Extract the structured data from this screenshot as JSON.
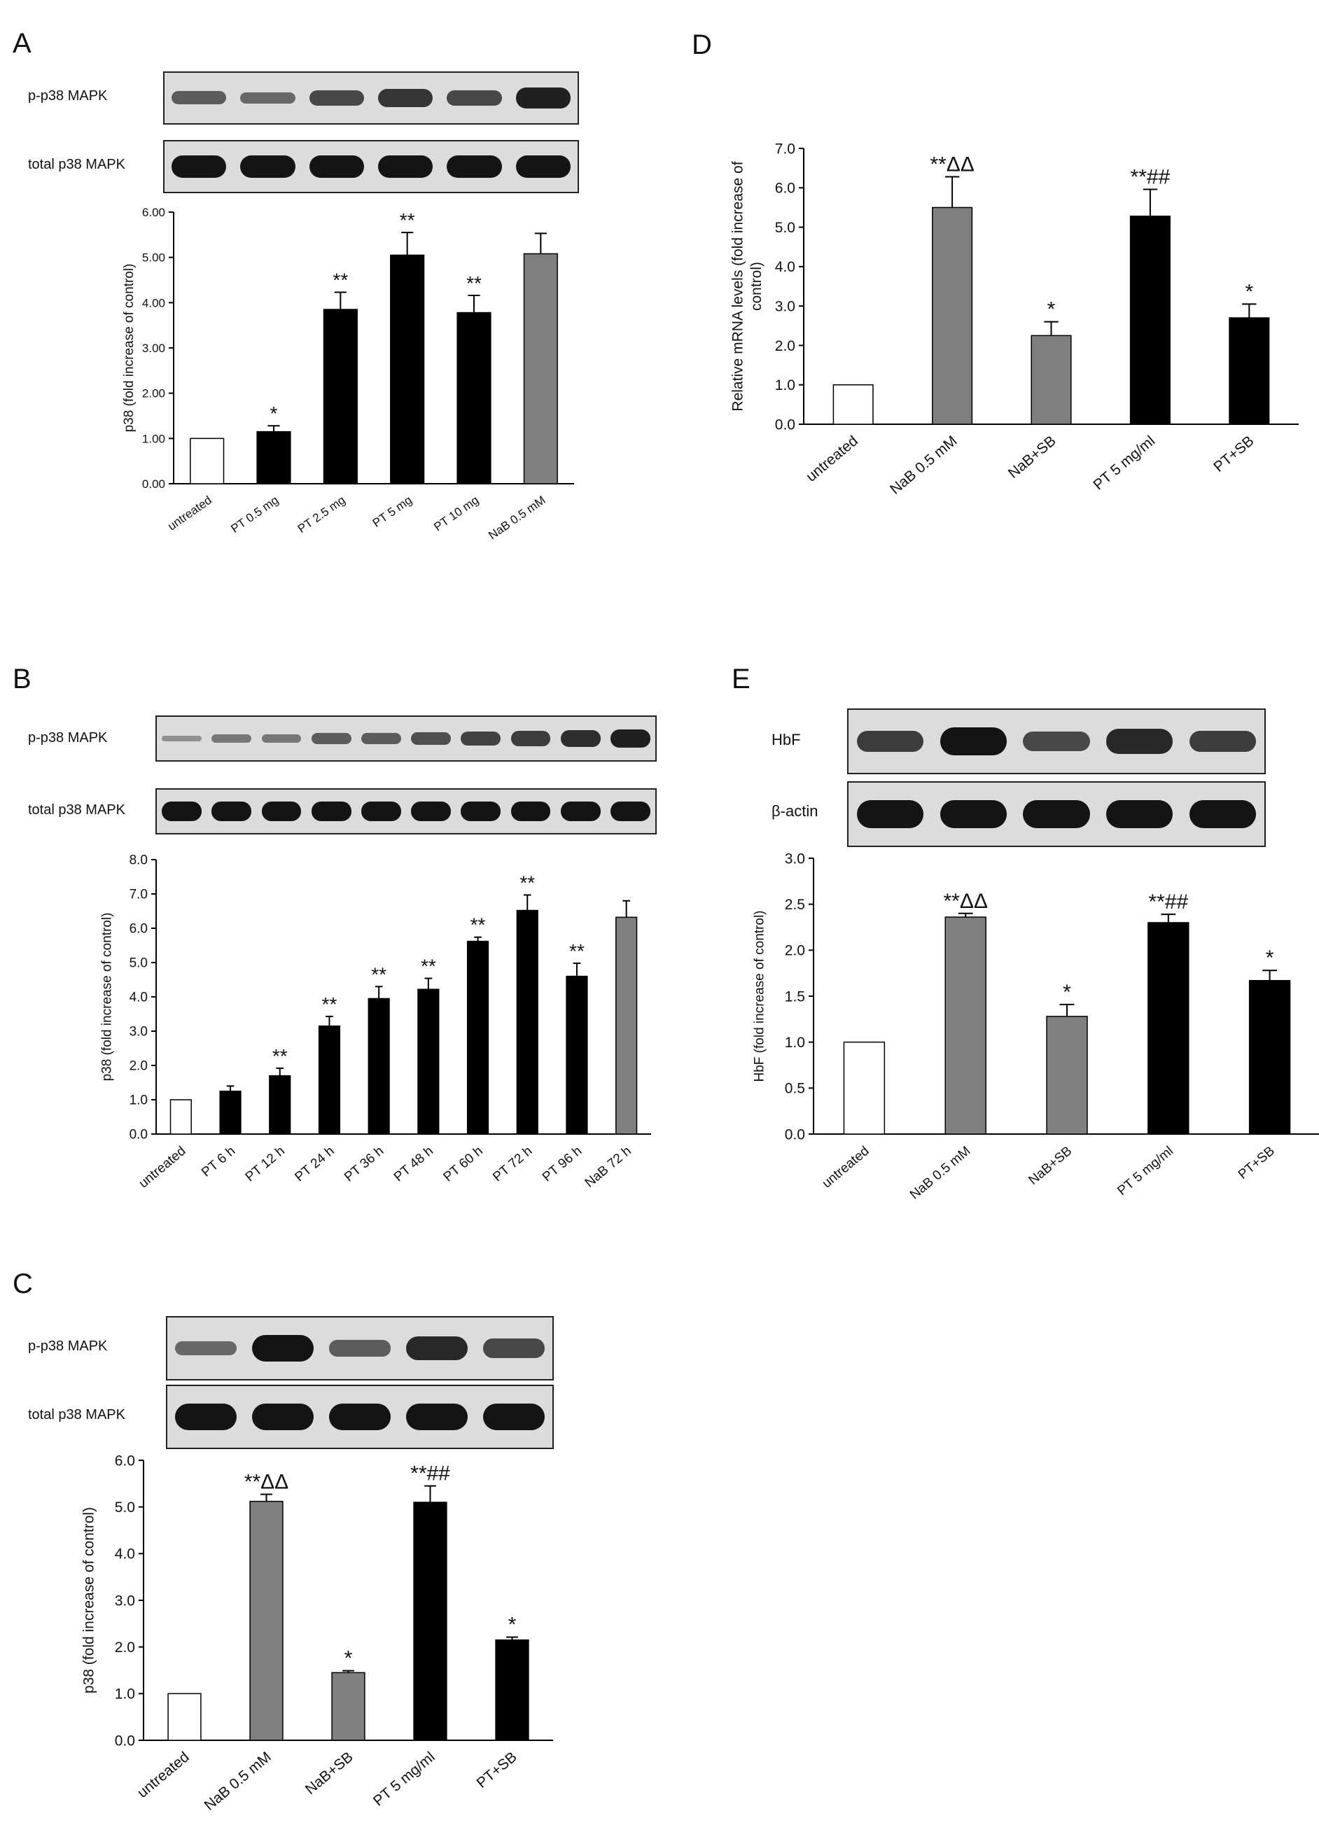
{
  "chart_data": [
    {
      "id": "A",
      "type": "bar",
      "panel_label": "A",
      "blot_labels": [
        "p-p38 MAPK",
        "total p38 MAPK"
      ],
      "blot_intensity": [
        [
          0.45,
          0.35,
          0.6,
          0.75,
          0.6,
          0.9
        ],
        [
          1,
          1,
          1,
          1,
          1,
          1
        ]
      ],
      "ylabel": "p38 (fold increase of control)",
      "ylim": [
        0,
        6
      ],
      "yticks": [
        "0.00",
        "1.00",
        "2.00",
        "3.00",
        "4.00",
        "5.00",
        "6.00"
      ],
      "categories": [
        "untreated",
        "PT 0.5 mg",
        "PT 2.5 mg",
        "PT 5 mg",
        "PT 10 mg",
        "NaB 0.5 mM"
      ],
      "values": [
        1.0,
        1.15,
        3.85,
        5.05,
        3.78,
        5.08
      ],
      "errors": [
        0,
        0.13,
        0.38,
        0.5,
        0.38,
        0.45
      ],
      "annotations": [
        "",
        "*",
        "**",
        "**",
        "**",
        ""
      ],
      "bar_colors": [
        "#ffffff",
        "#000000",
        "#000000",
        "#000000",
        "#000000",
        "#7f7f7f"
      ]
    },
    {
      "id": "B",
      "type": "bar",
      "panel_label": "B",
      "blot_labels": [
        "p-p38 MAPK",
        "total  p38 MAPK"
      ],
      "blot_intensity": [
        [
          0.05,
          0.25,
          0.25,
          0.45,
          0.45,
          0.55,
          0.65,
          0.7,
          0.8,
          0.9
        ],
        [
          1,
          1,
          1,
          1,
          1,
          1,
          1,
          1,
          1,
          1
        ]
      ],
      "ylabel": "p38 (fold increase of control)",
      "ylim": [
        0,
        8
      ],
      "yticks": [
        "0.0",
        "1.0",
        "2.0",
        "3.0",
        "4.0",
        "5.0",
        "6.0",
        "7.0",
        "8.0"
      ],
      "categories": [
        "untreated",
        "PT 6 h",
        "PT 12 h",
        "PT 24 h",
        "PT 36 h",
        "PT 48 h",
        "PT 60 h",
        "PT 72 h",
        "PT 96 h",
        "NaB 72 h"
      ],
      "values": [
        1.0,
        1.25,
        1.7,
        3.15,
        3.95,
        4.22,
        5.62,
        6.52,
        4.6,
        6.32
      ],
      "errors": [
        0,
        0.15,
        0.22,
        0.28,
        0.35,
        0.32,
        0.12,
        0.45,
        0.38,
        0.48
      ],
      "annotations": [
        "",
        "",
        "**",
        "**",
        "**",
        "**",
        "**",
        "**",
        "**",
        ""
      ],
      "bar_colors": [
        "#ffffff",
        "#000000",
        "#000000",
        "#000000",
        "#000000",
        "#000000",
        "#000000",
        "#000000",
        "#000000",
        "#7f7f7f"
      ]
    },
    {
      "id": "C",
      "type": "bar",
      "panel_label": "C",
      "blot_labels": [
        "p-p38 MAPK",
        "total p38 MAPK"
      ],
      "blot_intensity": [
        [
          0.35,
          1,
          0.45,
          0.85,
          0.6
        ],
        [
          1,
          1,
          1,
          1,
          1
        ]
      ],
      "ylabel": "p38 (fold increase of control)",
      "ylim": [
        0,
        6
      ],
      "yticks": [
        "0.0",
        "1.0",
        "2.0",
        "3.0",
        "4.0",
        "5.0",
        "6.0"
      ],
      "categories": [
        "untreated",
        "NaB 0.5 mM",
        "NaB+SB",
        "PT 5 mg/ml",
        "PT+SB"
      ],
      "values": [
        1.0,
        5.12,
        1.45,
        5.1,
        2.15
      ],
      "errors": [
        0,
        0.15,
        0.04,
        0.35,
        0.06
      ],
      "annotations": [
        "",
        "**ΔΔ",
        "*",
        "**##",
        "*"
      ],
      "bar_colors": [
        "#ffffff",
        "#7f7f7f",
        "#7f7f7f",
        "#000000",
        "#000000"
      ]
    },
    {
      "id": "D",
      "type": "bar",
      "panel_label": "D",
      "ylabel": "Relative mRNA levels (fold increase of control)",
      "ylim": [
        0,
        7
      ],
      "yticks": [
        "0.0",
        "1.0",
        "2.0",
        "3.0",
        "4.0",
        "5.0",
        "6.0",
        "7.0"
      ],
      "categories": [
        "untreated",
        "NaB 0.5 mM",
        "NaB+SB",
        "PT 5 mg/ml",
        "PT+SB"
      ],
      "values": [
        1.0,
        5.5,
        2.25,
        5.28,
        2.7
      ],
      "errors": [
        0,
        0.78,
        0.35,
        0.68,
        0.35
      ],
      "annotations": [
        "",
        "**ΔΔ",
        "*",
        "**##",
        "*"
      ],
      "bar_colors": [
        "#ffffff",
        "#7f7f7f",
        "#7f7f7f",
        "#000000",
        "#000000"
      ]
    },
    {
      "id": "E",
      "type": "bar",
      "panel_label": "E",
      "blot_labels": [
        "HbF",
        "β-actin"
      ],
      "blot_intensity": [
        [
          0.7,
          1,
          0.6,
          0.85,
          0.7
        ],
        [
          1,
          1,
          1,
          1,
          1
        ]
      ],
      "ylabel": "HbF (fold increase of control)",
      "ylim": [
        0,
        3
      ],
      "yticks": [
        "0.0",
        "0.5",
        "1.0",
        "1.5",
        "2.0",
        "2.5",
        "3.0"
      ],
      "categories": [
        "untreated",
        "NaB 0.5 mM",
        "NaB+SB",
        "PT 5 mg/ml",
        "PT+SB"
      ],
      "values": [
        1.0,
        2.36,
        1.28,
        2.3,
        1.67
      ],
      "errors": [
        0,
        0.04,
        0.13,
        0.09,
        0.11
      ],
      "annotations": [
        "",
        "**ΔΔ",
        "*",
        "**##",
        "*"
      ],
      "bar_colors": [
        "#ffffff",
        "#7f7f7f",
        "#7f7f7f",
        "#000000",
        "#000000"
      ]
    }
  ]
}
